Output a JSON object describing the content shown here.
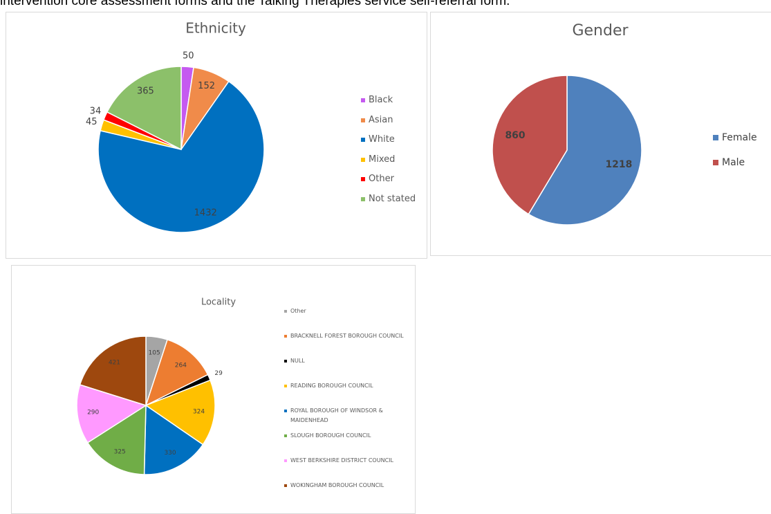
{
  "intro_text": "intervention core assessment forms and the Talking Therapies service self-referral form.",
  "chart_data": [
    {
      "type": "pie",
      "title": "Ethnicity",
      "categories": [
        "Black",
        "Asian",
        "White",
        "Mixed",
        "Other",
        "Not stated"
      ],
      "values": [
        50,
        152,
        1432,
        45,
        34,
        365
      ],
      "colors": [
        "#c55af0",
        "#f08b4a",
        "#0070c0",
        "#ffc000",
        "#ff0000",
        "#8cc06a"
      ]
    },
    {
      "type": "pie",
      "title": "Gender",
      "categories": [
        "Female",
        "Male"
      ],
      "values": [
        1218,
        860
      ],
      "colors": [
        "#4f81bd",
        "#c0504d"
      ]
    },
    {
      "type": "pie",
      "title": "Locality",
      "categories": [
        "Other",
        "BRACKNELL FOREST BOROUGH COUNCIL",
        "NULL",
        "READING BOROUGH COUNCIL",
        "ROYAL BOROUGH OF WINDSOR & MAIDENHEAD",
        "SLOUGH BOROUGH COUNCIL",
        "WEST BERKSHIRE DISTRICT COUNCIL",
        "WOKINGHAM BOROUGH COUNCIL"
      ],
      "values": [
        105,
        264,
        29,
        324,
        330,
        325,
        290,
        421
      ],
      "colors": [
        "#a5a5a5",
        "#ed7d31",
        "#000000",
        "#ffc000",
        "#0070c0",
        "#70ad47",
        "#ff99ff",
        "#9e480e"
      ]
    }
  ]
}
